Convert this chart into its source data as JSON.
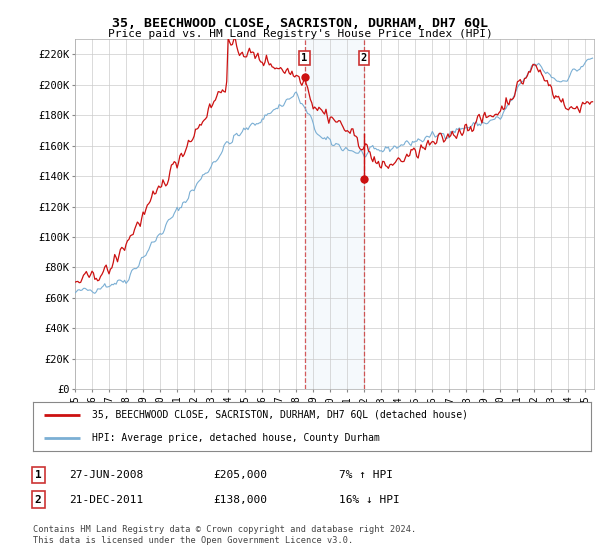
{
  "title": "35, BEECHWOOD CLOSE, SACRISTON, DURHAM, DH7 6QL",
  "subtitle": "Price paid vs. HM Land Registry's House Price Index (HPI)",
  "ylabel_ticks": [
    "£0",
    "£20K",
    "£40K",
    "£60K",
    "£80K",
    "£100K",
    "£120K",
    "£140K",
    "£160K",
    "£180K",
    "£200K",
    "£220K"
  ],
  "ytick_values": [
    0,
    20000,
    40000,
    60000,
    80000,
    100000,
    120000,
    140000,
    160000,
    180000,
    200000,
    220000
  ],
  "ylim": [
    0,
    230000
  ],
  "xlim_start": 1995.0,
  "xlim_end": 2025.5,
  "hpi_color": "#7bafd4",
  "price_color": "#cc1111",
  "sale1_x": 2008.49,
  "sale1_y": 205000,
  "sale2_x": 2011.97,
  "sale2_y": 138000,
  "sale1_label": "1",
  "sale2_label": "2",
  "legend_line1": "35, BEECHWOOD CLOSE, SACRISTON, DURHAM, DH7 6QL (detached house)",
  "legend_line2": "HPI: Average price, detached house, County Durham",
  "table_row1_num": "1",
  "table_row1_date": "27-JUN-2008",
  "table_row1_price": "£205,000",
  "table_row1_hpi": "7% ↑ HPI",
  "table_row2_num": "2",
  "table_row2_date": "21-DEC-2011",
  "table_row2_price": "£138,000",
  "table_row2_hpi": "16% ↓ HPI",
  "footer": "Contains HM Land Registry data © Crown copyright and database right 2024.\nThis data is licensed under the Open Government Licence v3.0.",
  "bg_color": "#ffffff",
  "plot_bg_color": "#ffffff",
  "grid_color": "#cccccc",
  "shade_color": "#dae8f5"
}
